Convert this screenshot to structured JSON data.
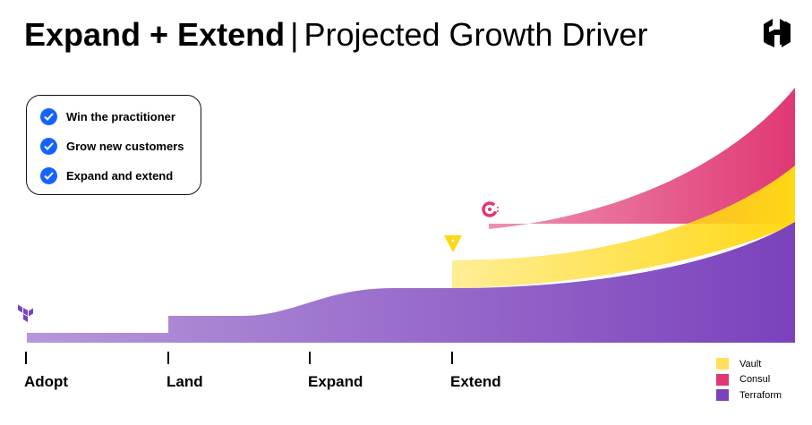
{
  "title": {
    "bold": "Expand + Extend",
    "separator": "|",
    "rest": "Projected Growth Driver"
  },
  "checklist": [
    {
      "label": "Win the practitioner",
      "icon": "check-circle-icon"
    },
    {
      "label": "Grow new customers",
      "icon": "check-circle-icon"
    },
    {
      "label": "Expand and extend",
      "icon": "check-circle-icon"
    }
  ],
  "stages": [
    {
      "label": "Adopt"
    },
    {
      "label": "Land"
    },
    {
      "label": "Expand"
    },
    {
      "label": "Extend"
    }
  ],
  "legend": [
    {
      "label": "Vault",
      "color": "#ffe05a"
    },
    {
      "label": "Consul",
      "color": "#e03875"
    },
    {
      "label": "Terraform",
      "color": "#7b42bc"
    }
  ],
  "colors": {
    "terraform": "#7b42bc",
    "vault": "#ffd814",
    "consul": "#e03875",
    "check": "#1563ff"
  }
}
